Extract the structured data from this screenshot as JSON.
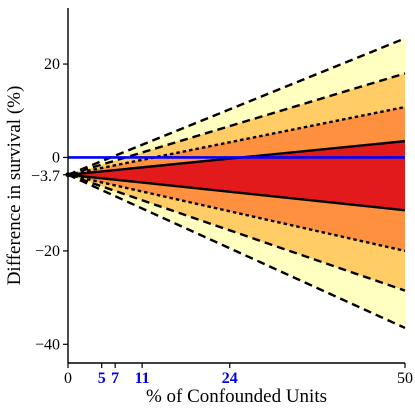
{
  "chart_data": {
    "type": "area",
    "xlabel": "% of Confounded Units",
    "ylabel": "Difference in survival (%)",
    "xlim": [
      0,
      50
    ],
    "ylim": [
      -44,
      32
    ],
    "x_ticks": [
      0,
      50
    ],
    "x_ticks_highlight": [
      5,
      7,
      11,
      24
    ],
    "y_ticks": [
      -40,
      -20,
      0,
      20
    ],
    "y_tick_special": {
      "value": -3.7,
      "label": "-3.7"
    },
    "start_point": {
      "x": 0,
      "y": -3.7
    },
    "reference_line": {
      "y": 0,
      "color": "#0000ff"
    },
    "bands": [
      {
        "lower_end": -36.5,
        "upper_end": 25.5,
        "fill": "#ffffc0",
        "border": "dashed"
      },
      {
        "lower_end": -28.5,
        "upper_end": 18.0,
        "fill": "#ffcc66",
        "border": "dashed"
      },
      {
        "lower_end": -20.0,
        "upper_end": 10.8,
        "fill": "#ff9040",
        "border": "dotted"
      },
      {
        "lower_end": -11.3,
        "upper_end": 3.5,
        "fill": "#e31a1c",
        "border": "solid"
      }
    ],
    "colors": {
      "outer_band": "#ffffc0",
      "band_2": "#ffcc66",
      "band_3": "#ff9040",
      "inner_band": "#e31a1c",
      "reference": "#0000ff",
      "highlight_ticks": "#0000ee"
    }
  }
}
